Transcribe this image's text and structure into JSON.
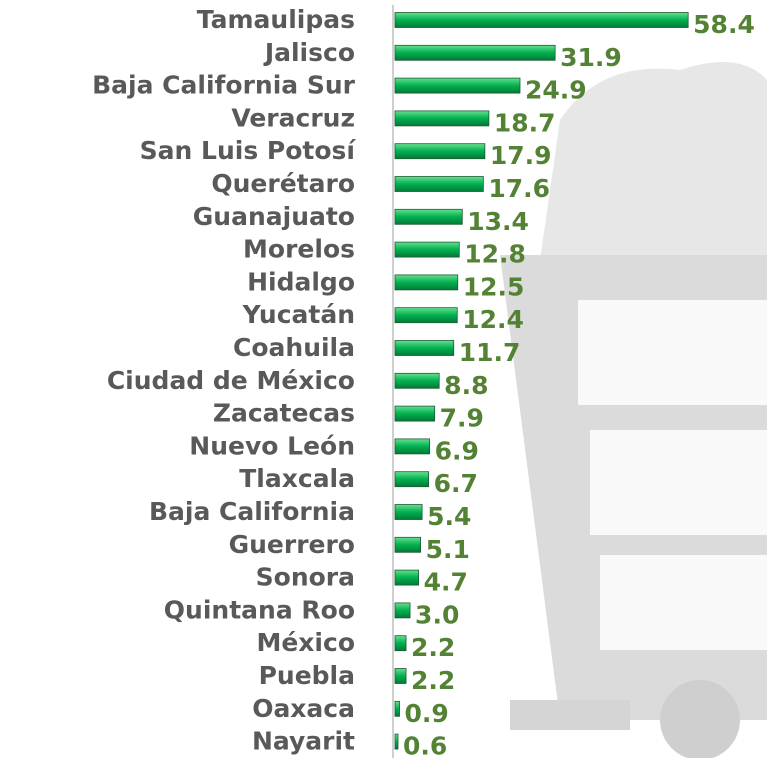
{
  "chart_data": {
    "type": "bar",
    "orientation": "horizontal",
    "color": "#00b050",
    "label_color": "#548235",
    "categories": [
      "Tamaulipas",
      "Jalisco",
      "Baja California Sur",
      "Veracruz",
      "San Luis Potosí",
      "Querétaro",
      "Guanajuato",
      "Morelos",
      "Hidalgo",
      "Yucatán",
      "Coahuila",
      "Ciudad de México",
      "Zacatecas",
      "Nuevo León",
      "Tlaxcala",
      "Baja California",
      "Guerrero",
      "Sonora",
      "Quintana Roo",
      "México",
      "Puebla",
      "Oaxaca",
      "Nayarit"
    ],
    "values": [
      58.4,
      31.9,
      24.9,
      18.7,
      17.9,
      17.6,
      13.4,
      12.8,
      12.5,
      12.4,
      11.7,
      8.8,
      7.9,
      6.9,
      6.7,
      5.4,
      5.1,
      4.7,
      3.0,
      2.2,
      2.2,
      0.9,
      0.6
    ],
    "value_labels": [
      "58.4",
      "31.9",
      "24.9",
      "18.7",
      "17.9",
      "17.6",
      "13.4",
      "12.8",
      "12.5",
      "12.4",
      "11.7",
      "8.8",
      "7.9",
      "6.9",
      "6.7",
      "5.4",
      "5.1",
      "4.7",
      "3.0",
      "2.2",
      "2.2",
      "0.9",
      "0.6"
    ]
  }
}
